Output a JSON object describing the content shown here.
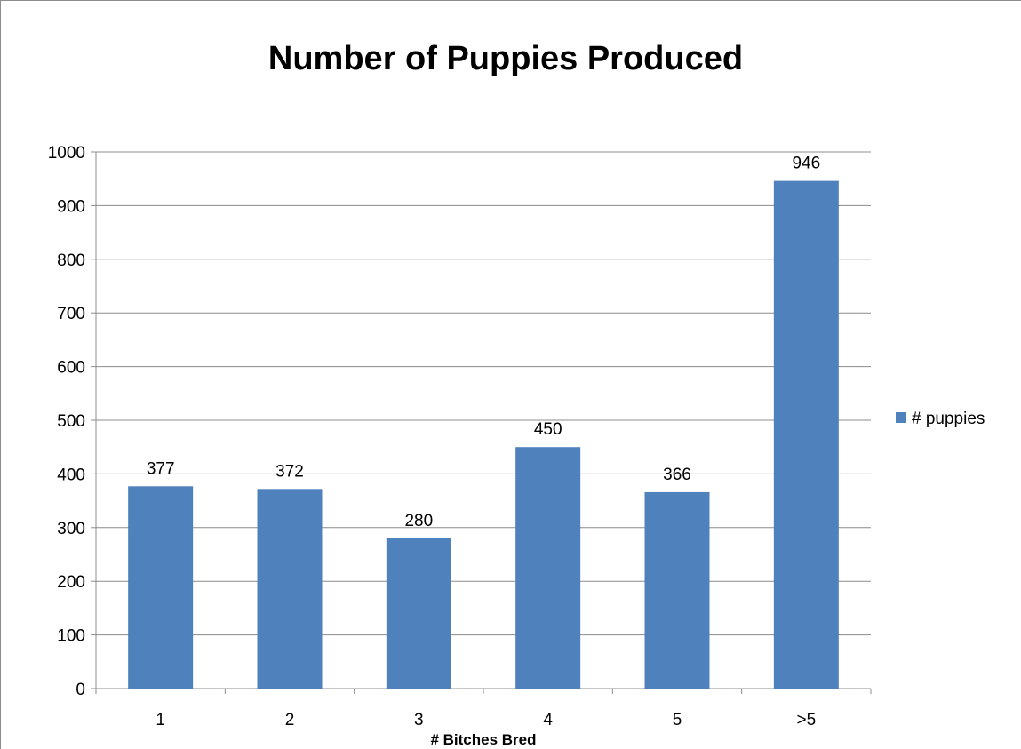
{
  "chart_data": {
    "type": "bar",
    "title": "Number of Puppies Produced",
    "xlabel": "# Bitches Bred",
    "ylabel": "",
    "categories": [
      "1",
      "2",
      "3",
      "4",
      "5",
      ">5"
    ],
    "series": [
      {
        "name": "# puppies",
        "values": [
          377,
          372,
          280,
          450,
          366,
          946
        ],
        "color": "#4f81bd"
      }
    ],
    "ylim": [
      0,
      1000
    ],
    "yticks": [
      0,
      100,
      200,
      300,
      400,
      500,
      600,
      700,
      800,
      900,
      1000
    ],
    "grid": true,
    "legend_position": "right",
    "data_labels": true
  }
}
